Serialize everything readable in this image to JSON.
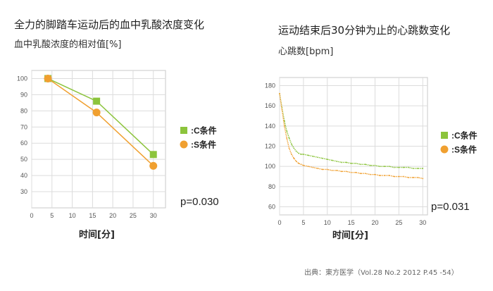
{
  "chart_data": [
    {
      "type": "line",
      "title": "全力的脚踏车运动后的血中乳酸浓度变化",
      "subtitle": "血中乳酸浓度的相对值[%]",
      "xlabel": "时间[分]",
      "ylabel": "",
      "xlim": [
        0,
        33
      ],
      "ylim": [
        20,
        105
      ],
      "xticks": [
        0,
        5,
        10,
        15,
        20,
        25,
        30
      ],
      "yticks": [
        30,
        40,
        50,
        60,
        70,
        80,
        90,
        100
      ],
      "grid": true,
      "legend_position": "right",
      "series": [
        {
          "name": ":C条件",
          "marker": "square",
          "color": "#8cc43c",
          "x": [
            4,
            16,
            30
          ],
          "y": [
            100,
            86,
            53
          ]
        },
        {
          "name": ":S条件",
          "marker": "circle",
          "color": "#f0a030",
          "x": [
            4,
            16,
            30
          ],
          "y": [
            100,
            79,
            46
          ]
        }
      ],
      "annotation": "p=0.030"
    },
    {
      "type": "line",
      "title": "运动结束后30分钟为止的心跳数变化",
      "subtitle": "心跳数[bpm]",
      "xlabel": "时间[分]",
      "ylabel": "",
      "xlim": [
        0,
        31
      ],
      "ylim": [
        52,
        188
      ],
      "xticks": [
        0,
        5,
        10,
        15,
        20,
        25,
        30
      ],
      "yticks": [
        60,
        80,
        100,
        120,
        140,
        160,
        180
      ],
      "grid": true,
      "legend_position": "right",
      "series": [
        {
          "name": ":C条件",
          "marker": "square",
          "color": "#8cc43c",
          "x": [
            0,
            0.5,
            1,
            1.5,
            2,
            2.5,
            3,
            3.5,
            4,
            4.5,
            5,
            6,
            7,
            8,
            9,
            10,
            11,
            12,
            13,
            14,
            15,
            16,
            17,
            18,
            19,
            20,
            21,
            22,
            23,
            24,
            25,
            26,
            27,
            28,
            29,
            30
          ],
          "y": [
            172,
            158,
            145,
            135,
            128,
            122,
            118,
            115,
            113,
            112,
            112,
            111,
            110,
            109,
            108,
            107,
            106,
            105,
            104,
            104,
            103,
            103,
            102,
            102,
            101,
            101,
            100,
            100,
            100,
            99,
            99,
            99,
            99,
            98,
            98,
            98
          ]
        },
        {
          "name": ":S条件",
          "marker": "circle",
          "color": "#f0a030",
          "x": [
            0,
            0.5,
            1,
            1.5,
            2,
            2.5,
            3,
            3.5,
            4,
            4.5,
            5,
            6,
            7,
            8,
            9,
            10,
            11,
            12,
            13,
            14,
            15,
            16,
            17,
            18,
            19,
            20,
            21,
            22,
            23,
            24,
            25,
            26,
            27,
            28,
            29,
            30
          ],
          "y": [
            172,
            156,
            140,
            128,
            118,
            112,
            108,
            105,
            103,
            102,
            101,
            100,
            99,
            98,
            97,
            97,
            96,
            96,
            95,
            95,
            94,
            94,
            93,
            93,
            92,
            92,
            91,
            91,
            91,
            90,
            90,
            90,
            89,
            89,
            89,
            88
          ]
        }
      ],
      "annotation": "p=0.031"
    }
  ],
  "source": "出典：東方医学（Vol.28 No.2 2012 P.45 -54）"
}
